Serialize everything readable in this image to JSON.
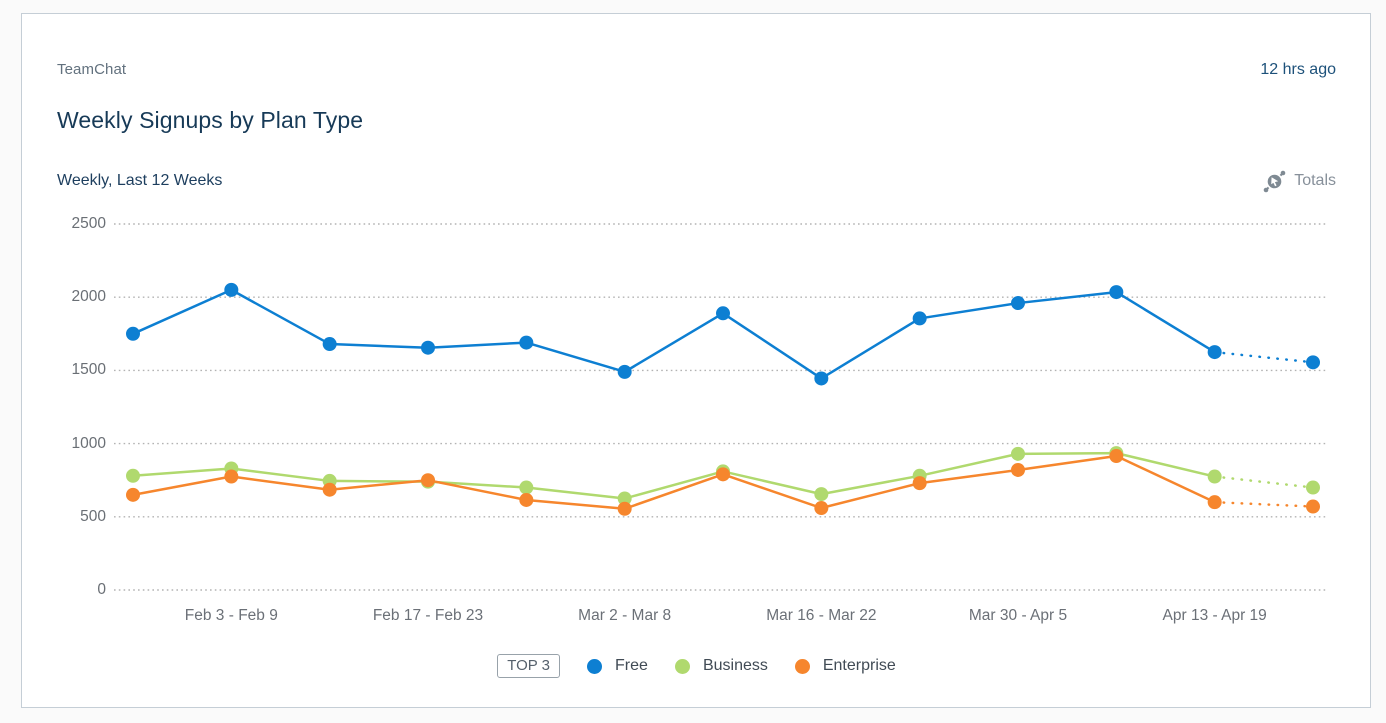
{
  "card": {
    "app_name": "TeamChat",
    "timestamp": "12 hrs ago",
    "title": "Weekly Signups by Plan Type",
    "subtitle": "Weekly, Last 12 Weeks",
    "totals_label": "Totals"
  },
  "legend": {
    "chip": "TOP 3",
    "items": [
      {
        "label": "Free",
        "color": "#0d7fd2"
      },
      {
        "label": "Business",
        "color": "#b0d96e"
      },
      {
        "label": "Enterprise",
        "color": "#f6862d"
      }
    ]
  },
  "colors": {
    "card_border": "#c5ced6",
    "page_background": "#fafafa",
    "gridline": "#b3b3b3",
    "axis_label": "#6a6f75",
    "title_text": "#173a57",
    "muted_text": "#87909a"
  },
  "chart_data": {
    "type": "line",
    "title": "Weekly Signups by Plan Type",
    "subtitle": "Weekly, Last 12 Weeks",
    "x_count": 13,
    "x_ticks": [
      {
        "index": 1,
        "label": "Feb 3 - Feb 9"
      },
      {
        "index": 3,
        "label": "Feb 17 - Feb 23"
      },
      {
        "index": 5,
        "label": "Mar 2 - Mar 8"
      },
      {
        "index": 7,
        "label": "Mar 16 - Mar 22"
      },
      {
        "index": 9,
        "label": "Mar 30 - Apr 5"
      },
      {
        "index": 11,
        "label": "Apr 13 - Apr 19"
      }
    ],
    "series": [
      {
        "name": "Free",
        "color": "#0d7fd2",
        "values": [
          1750,
          2050,
          1680,
          1655,
          1690,
          1490,
          1890,
          1445,
          1855,
          1960,
          2035,
          1625,
          1555
        ]
      },
      {
        "name": "Business",
        "color": "#b0d96e",
        "values": [
          780,
          830,
          745,
          740,
          700,
          625,
          810,
          655,
          780,
          930,
          935,
          775,
          700
        ]
      },
      {
        "name": "Enterprise",
        "color": "#f6862d",
        "values": [
          650,
          775,
          685,
          750,
          615,
          555,
          790,
          560,
          730,
          820,
          915,
          600,
          570
        ]
      }
    ],
    "last_segment_style": "dotted",
    "ylim": [
      0,
      2500
    ],
    "yticks": [
      0,
      500,
      1000,
      1500,
      2000,
      2500
    ],
    "grid": "horizontal-dotted",
    "legend_position": "bottom"
  }
}
